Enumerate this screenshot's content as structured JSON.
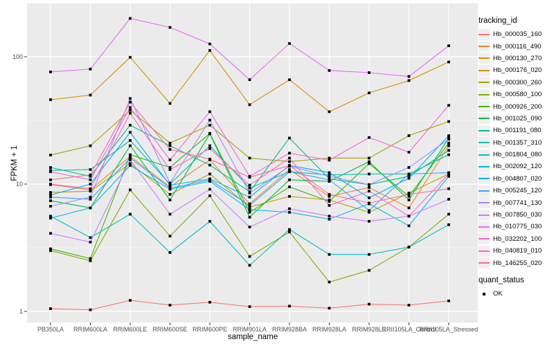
{
  "chart_data": {
    "type": "line",
    "title": "",
    "xlabel": "sample_name",
    "ylabel": "FPKM + 1",
    "y_scale": "log10",
    "ylim": [
      1,
      260
    ],
    "y_ticks": [
      {
        "label": "1",
        "value": 1
      },
      {
        "label": "10",
        "value": 10
      },
      {
        "label": "100",
        "value": 100
      }
    ],
    "y_minor_ticks": [
      3.162,
      31.62
    ],
    "grid": "on",
    "panel_bg": "#EBEBEB",
    "grid_color": "#FFFFFF",
    "point_color": "#000000",
    "point_shape": "square",
    "axis_text_color": "#4D4D4D",
    "legend_position": "right",
    "categories": [
      "PB350LA",
      "RRIM600LA",
      "RRIM600LE",
      "RRIM600SE",
      "RRIM600PE",
      "RRIM901LA",
      "RRIM928BA",
      "RRIM928LA",
      "RRIM928LE",
      "RRII105LA_Control",
      "RRII105LA_Stressed"
    ],
    "series": [
      {
        "name": "Hb_000035_160",
        "color": "#F8766D",
        "values": [
          1.05,
          1.03,
          1.22,
          1.12,
          1.18,
          1.09,
          1.1,
          1.06,
          1.14,
          1.12,
          1.21
        ]
      },
      {
        "name": "Hb_000116_490",
        "color": "#EA8331",
        "values": [
          9.9,
          9.0,
          16.5,
          9.5,
          15.5,
          7.0,
          13.0,
          8.0,
          9.4,
          6.5,
          20.0
        ]
      },
      {
        "name": "Hb_000130_270",
        "color": "#D89000",
        "values": [
          46,
          50,
          99,
          43,
          112,
          42,
          66,
          37,
          52,
          65,
          91
        ]
      },
      {
        "name": "Hb_000176_020",
        "color": "#C09B00",
        "values": [
          8.6,
          8.8,
          14.5,
          8.3,
          12.0,
          6.6,
          8.0,
          7.5,
          6.0,
          8.5,
          12.0
        ]
      },
      {
        "name": "Hb_000300_260",
        "color": "#A3A500",
        "values": [
          16.9,
          20,
          38,
          21,
          29,
          16,
          15,
          16,
          16,
          24,
          31
        ]
      },
      {
        "name": "Hb_000580_100",
        "color": "#7CAE00",
        "values": [
          3.0,
          2.5,
          9.0,
          3.9,
          8.1,
          2.7,
          4.2,
          1.7,
          2.1,
          3.2,
          5.8
        ]
      },
      {
        "name": "Hb_000926_200",
        "color": "#39B600",
        "values": [
          3.1,
          2.6,
          17,
          13.5,
          25,
          6.0,
          9.5,
          7.3,
          14.5,
          8.0,
          21
        ]
      },
      {
        "name": "Hb_001025_090",
        "color": "#00BB4E",
        "values": [
          7.4,
          6.5,
          20,
          7.5,
          24.8,
          5.5,
          10.8,
          10.5,
          15,
          7.5,
          23
        ]
      },
      {
        "name": "Hb_001191_080",
        "color": "#00BF7D",
        "values": [
          13.5,
          11.5,
          29,
          20,
          14.1,
          8.7,
          23,
          11,
          9.9,
          11.5,
          18.4
        ]
      },
      {
        "name": "Hb_001357_310",
        "color": "#00C1A3",
        "values": [
          12.8,
          13,
          22,
          10,
          20,
          9.3,
          12.5,
          11.8,
          12,
          12,
          17
        ]
      },
      {
        "name": "Hb_001804_080",
        "color": "#00BFC4",
        "values": [
          5.6,
          3.8,
          5.8,
          2.9,
          5.1,
          2.3,
          4.4,
          2.8,
          2.8,
          3.2,
          4.8
        ]
      },
      {
        "name": "Hb_002092_120",
        "color": "#00BAE0",
        "values": [
          5.4,
          6.5,
          14,
          9.1,
          10.5,
          6.3,
          6.0,
          5.3,
          7.0,
          4.7,
          11.5
        ]
      },
      {
        "name": "Hb_004807_020",
        "color": "#00B0F6",
        "values": [
          8.2,
          10,
          25.5,
          9.8,
          11,
          7.9,
          14,
          12.3,
          7.8,
          11.1,
          24
        ]
      },
      {
        "name": "Hb_005245_120",
        "color": "#35A2FF",
        "values": [
          7.9,
          7.6,
          16,
          9.3,
          10.8,
          6.8,
          12.5,
          10.8,
          6.2,
          12,
          12.3
        ]
      },
      {
        "name": "Hb_007741_130",
        "color": "#9590FF",
        "values": [
          6.7,
          7.9,
          47,
          10.2,
          31.8,
          8.5,
          13.8,
          11.5,
          9.9,
          13.5,
          22.5
        ]
      },
      {
        "name": "Hb_007850_030",
        "color": "#C77CFF",
        "values": [
          4.1,
          3.5,
          15.5,
          5.8,
          9.1,
          4.6,
          6.4,
          5.6,
          5.1,
          5.6,
          7.6
        ]
      },
      {
        "name": "Hb_010775_030",
        "color": "#E76BF3",
        "values": [
          76,
          80,
          200,
          170,
          126,
          66,
          127,
          78,
          75,
          70,
          122
        ]
      },
      {
        "name": "Hb_032202_100",
        "color": "#FA62DB",
        "values": [
          12.5,
          10.8,
          40,
          15.5,
          37,
          11.5,
          17.5,
          15.4,
          23.2,
          17.8,
          41.5
        ]
      },
      {
        "name": "Hb_040819_010",
        "color": "#FF61CC",
        "values": [
          10.0,
          9.2,
          36,
          13,
          19,
          9.8,
          16,
          6.8,
          8.8,
          5.6,
          12
        ]
      },
      {
        "name": "Hb_146255_020",
        "color": "#FF6A98",
        "values": [
          10.8,
          11.8,
          44,
          18.7,
          15.7,
          11.3,
          14,
          8.3,
          7.1,
          8.3,
          9.2
        ]
      }
    ],
    "legend": {
      "title": "tracking_id",
      "quant_title": "quant_status",
      "quant_items": [
        {
          "label": "OK",
          "shape": "square",
          "color": "#000000"
        }
      ]
    }
  }
}
